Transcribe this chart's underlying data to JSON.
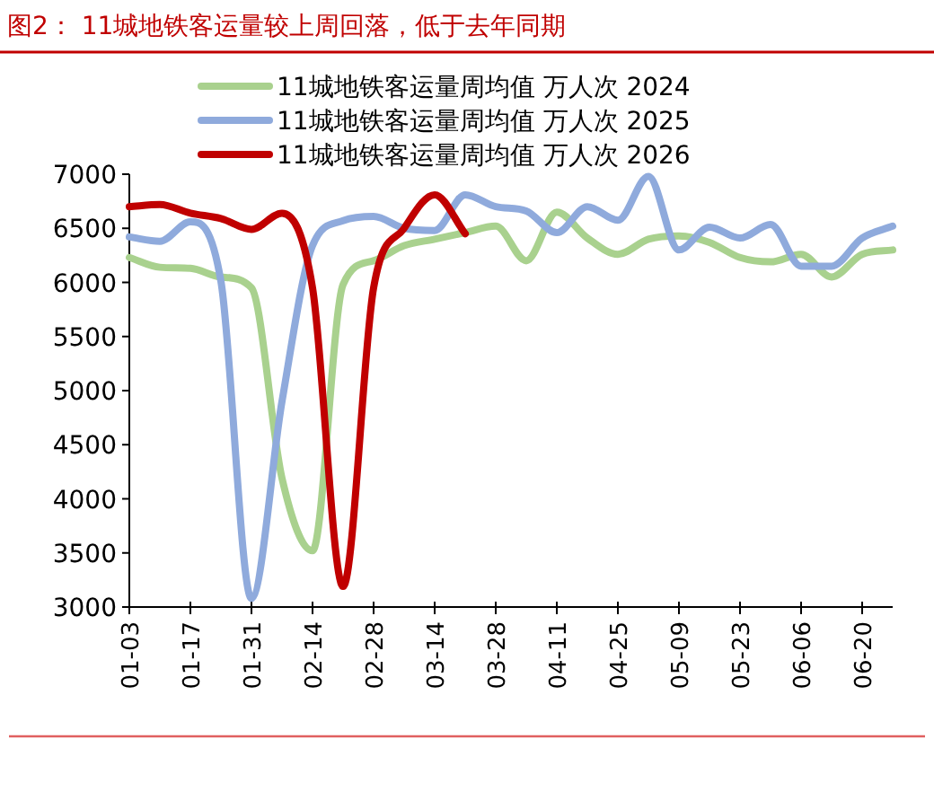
{
  "chart_data": {
    "type": "line",
    "title": "图2： 11城地铁客运量较上周回落，低于去年同期",
    "x": [
      "--01-03",
      "--01-10",
      "--01-17",
      "--01-24",
      "--01-31",
      "--02-07",
      "--02-14",
      "--02-21",
      "--02-28",
      "--03-07",
      "--03-14",
      "--03-21",
      "--03-28",
      "--04-04",
      "--04-11",
      "--04-18",
      "--04-25",
      "--05-02",
      "--05-09",
      "--05-16",
      "--05-23",
      "--05-30",
      "--06-06",
      "--06-13",
      "--06-20",
      "--06-27"
    ],
    "series": [
      {
        "name": "11城地铁客运量周均值 万人次 2024",
        "color": "#a9d18e",
        "values": [
          6230,
          6140,
          6130,
          6050,
          5950,
          4190,
          3520,
          5980,
          6200,
          6340,
          6400,
          6460,
          6520,
          6200,
          6650,
          6410,
          6260,
          6400,
          6430,
          6370,
          6230,
          6190,
          6260,
          6050,
          6260,
          6300
        ]
      },
      {
        "name": "11城地铁客运量周均值 万人次 2025",
        "color": "#8faadc",
        "values": [
          6420,
          6380,
          6560,
          6010,
          3080,
          4900,
          6340,
          6570,
          6610,
          6500,
          6480,
          6810,
          6700,
          6660,
          6460,
          6700,
          6575,
          6980,
          6300,
          6510,
          6410,
          6535,
          6150,
          6150,
          6410,
          6520
        ]
      },
      {
        "name": "11城地铁客运量周均值 万人次 2026",
        "color": "#c00000",
        "values": [
          6700,
          6720,
          6640,
          6590,
          6490,
          6640,
          5950,
          3190,
          5950,
          6500,
          6810,
          6450,
          null,
          null,
          null,
          null,
          null,
          null,
          null,
          null,
          null,
          null,
          null,
          null,
          null,
          null
        ]
      }
    ],
    "xlim": [
      "--01-03",
      "--06-27"
    ],
    "xticks": [
      {
        "value": "--01-03",
        "label": "01-03"
      },
      {
        "value": "--01-17",
        "label": "01-17"
      },
      {
        "value": "--01-31",
        "label": "01-31"
      },
      {
        "value": "--02-14",
        "label": "02-14"
      },
      {
        "value": "--02-28",
        "label": "02-28"
      },
      {
        "value": "--03-14",
        "label": "03-14"
      },
      {
        "value": "--03-28",
        "label": "03-28"
      },
      {
        "value": "--04-11",
        "label": "04-11"
      },
      {
        "value": "--04-25",
        "label": "04-25"
      },
      {
        "value": "--05-09",
        "label": "05-09"
      },
      {
        "value": "--05-23",
        "label": "05-23"
      },
      {
        "value": "--06-06",
        "label": "06-06"
      },
      {
        "value": "--06-20",
        "label": "06-20"
      }
    ],
    "ylim": [
      3000,
      7000
    ],
    "yticks": [
      3000,
      3500,
      4000,
      4500,
      5000,
      5500,
      6000,
      6500,
      7000
    ],
    "legend": "top",
    "grid": false,
    "marker": "none",
    "line_style": "solid"
  }
}
